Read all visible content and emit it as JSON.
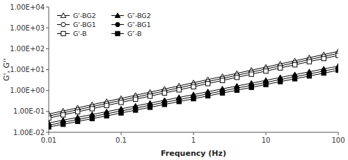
{
  "chart_data": {
    "type": "line",
    "x": [
      0.01,
      0.0158,
      0.0251,
      0.0398,
      0.0631,
      0.1,
      0.158,
      0.251,
      0.398,
      0.631,
      1.0,
      1.58,
      2.51,
      3.98,
      6.31,
      10.0,
      15.8,
      25.1,
      39.8,
      63.1,
      100.0
    ],
    "series": [
      {
        "name": "G'-BG2",
        "color": "#000000",
        "marker": "triangle-open",
        "values": [
          0.075,
          0.105,
          0.148,
          0.21,
          0.296,
          0.42,
          0.592,
          0.836,
          1.18,
          1.67,
          2.36,
          3.33,
          4.7,
          6.64,
          9.38,
          13.2,
          18.7,
          26.4,
          37.3,
          52.7,
          74.4
        ]
      },
      {
        "name": "G'-BG1",
        "color": "#000000",
        "marker": "circle-open",
        "values": [
          0.06,
          0.085,
          0.12,
          0.169,
          0.239,
          0.337,
          0.476,
          0.673,
          0.95,
          1.34,
          1.9,
          2.68,
          3.78,
          5.35,
          7.55,
          10.7,
          15.1,
          21.3,
          30.1,
          42.5,
          60.0
        ]
      },
      {
        "name": "G'-B",
        "color": "#000000",
        "marker": "square-open",
        "values": [
          0.048,
          0.068,
          0.096,
          0.135,
          0.191,
          0.27,
          0.381,
          0.538,
          0.76,
          1.07,
          1.51,
          2.14,
          3.02,
          4.26,
          6.02,
          8.5,
          12.0,
          17.0,
          24.0,
          33.9,
          47.9
        ]
      },
      {
        "name": "G″-BG2",
        "color": "#000000",
        "marker": "triangle",
        "values": [
          0.028,
          0.038,
          0.052,
          0.071,
          0.097,
          0.133,
          0.182,
          0.249,
          0.341,
          0.467,
          0.639,
          0.875,
          1.2,
          1.64,
          2.24,
          3.07,
          4.2,
          5.75,
          7.87,
          10.8,
          14.7
        ]
      },
      {
        "name": "G″-BG1",
        "color": "#000000",
        "marker": "circle",
        "values": [
          0.022,
          0.03,
          0.041,
          0.056,
          0.077,
          0.105,
          0.144,
          0.197,
          0.27,
          0.369,
          0.506,
          0.692,
          0.947,
          1.3,
          1.77,
          2.43,
          3.32,
          4.55,
          6.22,
          8.52,
          11.7
        ]
      },
      {
        "name": "G″-B",
        "color": "#000000",
        "marker": "square",
        "values": [
          0.018,
          0.024,
          0.033,
          0.045,
          0.061,
          0.084,
          0.115,
          0.157,
          0.215,
          0.295,
          0.403,
          0.552,
          0.755,
          1.03,
          1.41,
          1.93,
          2.65,
          3.62,
          4.95,
          6.78,
          9.28
        ]
      }
    ],
    "x_label": "Frequency (Hz)",
    "y_label": "G', G''",
    "log": true,
    "xlim": [
      0.01,
      100
    ],
    "ylim": [
      0.01,
      10000
    ],
    "xticks": [
      0.01,
      0.1,
      1,
      10,
      100
    ],
    "yticks": [
      {
        "value": 0.01,
        "label": "1.00E-02"
      },
      {
        "value": 0.1,
        "label": "1.00E-01"
      },
      {
        "value": 1.0,
        "label": "1.00E+00"
      },
      {
        "value": 10.0,
        "label": "1.00E+01"
      },
      {
        "value": 100.0,
        "label": "1.00E+02"
      },
      {
        "value": 1000.0,
        "label": "1.00E+03"
      },
      {
        "value": 10000.0,
        "label": "1.00E+04"
      }
    ],
    "grid": false,
    "legend": "upper left"
  }
}
